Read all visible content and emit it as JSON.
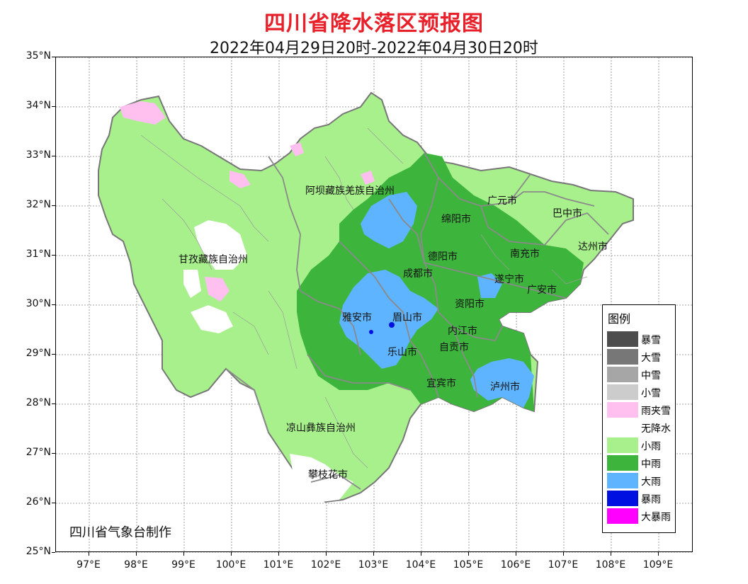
{
  "title": "四川省降水落区预报图",
  "subtitle": "2022年04月29日20时-2022年04月30日20时",
  "credit": "四川省气象台制作",
  "axes": {
    "lat_labels": [
      "35°N",
      "34°N",
      "33°N",
      "32°N",
      "31°N",
      "30°N",
      "29°N",
      "28°N",
      "27°N",
      "26°N",
      "25°N"
    ],
    "lon_labels": [
      "97°E",
      "98°E",
      "99°E",
      "100°E",
      "101°E",
      "102°E",
      "103°E",
      "104°E",
      "105°E",
      "106°E",
      "107°E",
      "108°E",
      "109°E"
    ]
  },
  "regions": [
    {
      "name": "阿坝藏族羌族自治州"
    },
    {
      "name": "广元市"
    },
    {
      "name": "绵阳市"
    },
    {
      "name": "巴中市"
    },
    {
      "name": "甘孜藏族自治州"
    },
    {
      "name": "德阳市"
    },
    {
      "name": "南充市"
    },
    {
      "name": "达州市"
    },
    {
      "name": "成都市"
    },
    {
      "name": "遂宁市"
    },
    {
      "name": "广安市"
    },
    {
      "name": "雅安市"
    },
    {
      "name": "眉山市"
    },
    {
      "name": "资阳市"
    },
    {
      "name": "内江市"
    },
    {
      "name": "自贡市"
    },
    {
      "name": "乐山市"
    },
    {
      "name": "宜宾市"
    },
    {
      "name": "泸州市"
    },
    {
      "name": "凉山彝族自治州"
    },
    {
      "name": "攀枝花市"
    }
  ],
  "legend": {
    "title": "图例",
    "items": [
      {
        "label": "暴雪",
        "color": "#4d4d4d"
      },
      {
        "label": "大雪",
        "color": "#777777"
      },
      {
        "label": "中雪",
        "color": "#a6a6a6"
      },
      {
        "label": "小雪",
        "color": "#cccccc"
      },
      {
        "label": "雨夹雪",
        "color": "#ffc0f0"
      },
      {
        "label": "无降水",
        "color": "#ffffff"
      },
      {
        "label": "小雨",
        "color": "#a8f08c"
      },
      {
        "label": "中雨",
        "color": "#3db53d"
      },
      {
        "label": "大雨",
        "color": "#5fb4ff"
      },
      {
        "label": "暴雨",
        "color": "#0010e0"
      },
      {
        "label": "大暴雨",
        "color": "#ff00ff"
      }
    ]
  }
}
